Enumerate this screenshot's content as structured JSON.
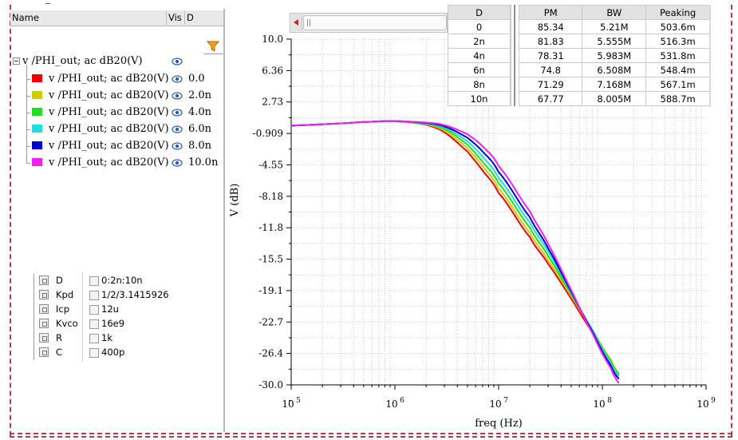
{
  "tree": {
    "columns": {
      "name": "Name",
      "vis": "Vis",
      "d": "D"
    },
    "root_label": "v /PHI_out; ac dB20(V)",
    "items": [
      {
        "label": "v /PHI_out; ac dB20(V)",
        "d": "0.0",
        "color": "#ee0000"
      },
      {
        "label": "v /PHI_out; ac dB20(V)",
        "d": "2.0n",
        "color": "#cccc00"
      },
      {
        "label": "v /PHI_out; ac dB20(V)",
        "d": "4.0n",
        "color": "#22dd22"
      },
      {
        "label": "v /PHI_out; ac dB20(V)",
        "d": "6.0n",
        "color": "#22dddd"
      },
      {
        "label": "v /PHI_out; ac dB20(V)",
        "d": "8.0n",
        "color": "#0000cc"
      },
      {
        "label": "v /PHI_out; ac dB20(V)",
        "d": "10.0n",
        "color": "#ee22ee"
      }
    ]
  },
  "variables": [
    {
      "name": "D",
      "value": "0:2n:10n"
    },
    {
      "name": "Kpd",
      "value": "1/2/3.1415926"
    },
    {
      "name": "Icp",
      "value": "12u"
    },
    {
      "name": "Kvco",
      "value": "16e9"
    },
    {
      "name": "R",
      "value": "1k"
    },
    {
      "name": "C",
      "value": "400p"
    }
  ],
  "results_table": {
    "headers": [
      "D",
      "PM",
      "BW",
      "Peaking"
    ],
    "rows": [
      [
        "0",
        "85.34",
        "5.21M",
        "503.6m"
      ],
      [
        "2n",
        "81.83",
        "5.555M",
        "516.3m"
      ],
      [
        "4n",
        "78.31",
        "5.983M",
        "531.8m"
      ],
      [
        "6n",
        "74.8",
        "6.508M",
        "548.4m"
      ],
      [
        "8n",
        "71.29",
        "7.168M",
        "567.1m"
      ],
      [
        "10n",
        "67.77",
        "8.005M",
        "588.7m"
      ]
    ]
  },
  "chart_data": {
    "type": "line",
    "xlabel": "freq (Hz)",
    "ylabel": "V (dB)",
    "xscale": "log",
    "xlim": [
      100000,
      1000000000
    ],
    "ylim": [
      -30.0,
      10.0
    ],
    "xticks": [
      {
        "value": 100000,
        "base": "10",
        "exp": "5"
      },
      {
        "value": 1000000,
        "base": "10",
        "exp": "6"
      },
      {
        "value": 10000000,
        "base": "10",
        "exp": "7"
      },
      {
        "value": 100000000,
        "base": "10",
        "exp": "8"
      },
      {
        "value": 1000000000,
        "base": "10",
        "exp": "9"
      }
    ],
    "yticks": [
      "10.0",
      "6.36",
      "2.73",
      "-0.909",
      "-4.55",
      "-8.18",
      "-11.8",
      "-15.5",
      "-19.1",
      "-22.7",
      "-26.4",
      "-30.0"
    ],
    "grid": true,
    "series": [
      {
        "name": "0.0",
        "color": "#ee0000",
        "x": [
          100000,
          300000,
          600000,
          1000000,
          2000000,
          3000000,
          5000000,
          7000000,
          10000000,
          20000000,
          30000000,
          50000000,
          80000000,
          120000000,
          150000000
        ],
        "y": [
          0.0,
          0.25,
          0.45,
          0.5,
          0.1,
          -0.8,
          -3.0,
          -5.2,
          -7.8,
          -12.9,
          -16.0,
          -20.0,
          -23.9,
          -27.2,
          -29.0
        ]
      },
      {
        "name": "2.0n",
        "color": "#cccc00",
        "x": [
          100000,
          300000,
          600000,
          1000000,
          2000000,
          3000000,
          5000000,
          7000000,
          10000000,
          20000000,
          30000000,
          50000000,
          80000000,
          120000000,
          150000000
        ],
        "y": [
          0.0,
          0.25,
          0.45,
          0.5,
          0.15,
          -0.6,
          -2.6,
          -4.7,
          -7.3,
          -12.4,
          -15.6,
          -19.7,
          -23.6,
          -27.0,
          -28.9
        ]
      },
      {
        "name": "4.0n",
        "color": "#22dd22",
        "x": [
          100000,
          300000,
          600000,
          1000000,
          2000000,
          3000000,
          5000000,
          7000000,
          10000000,
          20000000,
          30000000,
          50000000,
          80000000,
          120000000,
          150000000
        ],
        "y": [
          0.0,
          0.25,
          0.45,
          0.5,
          0.2,
          -0.4,
          -2.2,
          -4.2,
          -6.7,
          -11.8,
          -15.1,
          -19.5,
          -23.6,
          -27.2,
          -29.0
        ]
      },
      {
        "name": "6.0n",
        "color": "#22dddd",
        "x": [
          100000,
          300000,
          600000,
          1000000,
          2000000,
          3000000,
          5000000,
          7000000,
          10000000,
          20000000,
          30000000,
          50000000,
          80000000,
          120000000,
          150000000
        ],
        "y": [
          0.0,
          0.25,
          0.45,
          0.52,
          0.25,
          -0.25,
          -1.8,
          -3.6,
          -6.1,
          -11.2,
          -14.6,
          -19.3,
          -23.6,
          -27.4,
          -29.2
        ]
      },
      {
        "name": "8.0n",
        "color": "#0000cc",
        "x": [
          100000,
          300000,
          600000,
          1000000,
          2000000,
          3000000,
          5000000,
          7000000,
          10000000,
          20000000,
          30000000,
          50000000,
          80000000,
          120000000,
          150000000
        ],
        "y": [
          0.0,
          0.25,
          0.45,
          0.52,
          0.3,
          -0.1,
          -1.4,
          -3.0,
          -5.4,
          -10.6,
          -14.2,
          -19.2,
          -23.8,
          -27.7,
          -29.5
        ]
      },
      {
        "name": "10.0n",
        "color": "#ee22ee",
        "x": [
          100000,
          300000,
          600000,
          1000000,
          2000000,
          3000000,
          5000000,
          7000000,
          10000000,
          20000000,
          30000000,
          50000000,
          80000000,
          120000000,
          150000000
        ],
        "y": [
          0.0,
          0.25,
          0.45,
          0.52,
          0.35,
          0.05,
          -1.0,
          -2.4,
          -4.7,
          -9.9,
          -13.7,
          -19.0,
          -24.0,
          -28.0,
          -30.0
        ]
      }
    ]
  }
}
